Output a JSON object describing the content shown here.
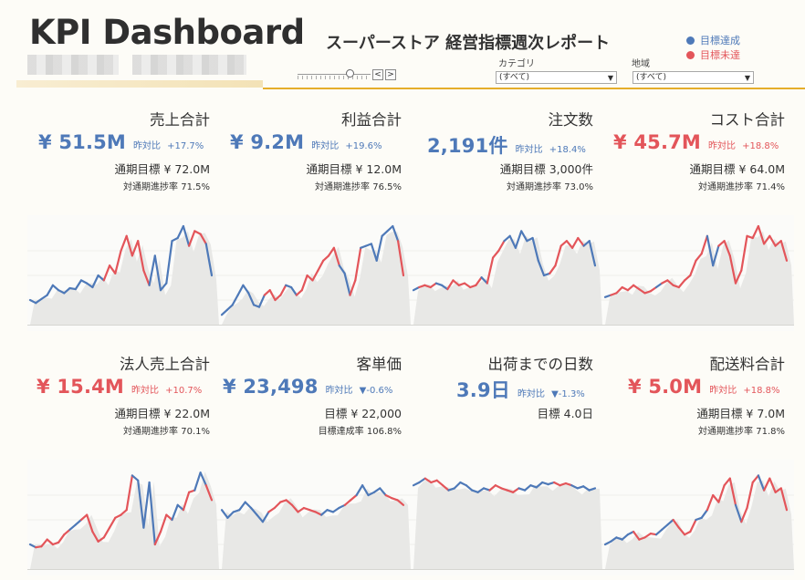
{
  "header": {
    "title": "KPI Dashboard",
    "subtitle": "スーパーストア 経営指標週次レポート"
  },
  "filters": {
    "prev_label": "<",
    "next_label": ">",
    "category": {
      "label": "カテゴリ",
      "value": "(すべて)"
    },
    "region": {
      "label": "地域",
      "value": "(すべて)"
    }
  },
  "legend": [
    {
      "label": "目標達成",
      "color": "#4e79b8"
    },
    {
      "label": "目標未達",
      "color": "#e3555a"
    }
  ],
  "colors": {
    "met": "#4e79b8",
    "unmet": "#e3555a",
    "area": "#e8e8e6",
    "accent": "#e5ad2a"
  },
  "kpis": [
    {
      "title": "売上合計",
      "value": "¥ 51.5M",
      "status": "met",
      "yoy_label": "昨対比",
      "yoy": "+17.7%",
      "target": "通期目標 ¥ 72.0M",
      "progress": "対通期進捗率 71.5%",
      "series": [
        0.25,
        0.22,
        0.26,
        0.3,
        0.4,
        0.35,
        0.32,
        0.37,
        0.36,
        0.45,
        0.42,
        0.38,
        0.5,
        0.45,
        0.6,
        0.52,
        0.75,
        0.9,
        0.7,
        0.85,
        0.55,
        0.4,
        0.7,
        0.35,
        0.42,
        0.85,
        0.88,
        1.0,
        0.8,
        0.95,
        0.92,
        0.82,
        0.5
      ],
      "red_idx": [
        13,
        14,
        15,
        16,
        17,
        18,
        19,
        20,
        28,
        29,
        30
      ]
    },
    {
      "title": "利益合計",
      "value": "¥ 9.2M",
      "status": "met",
      "yoy_label": "昨対比",
      "yoy": "+19.6%",
      "target": "通期目標 ¥ 12.0M",
      "progress": "対通期進捗率 76.5%",
      "series": [
        0.1,
        0.15,
        0.2,
        0.3,
        0.4,
        0.32,
        0.2,
        0.18,
        0.3,
        0.35,
        0.25,
        0.3,
        0.4,
        0.38,
        0.3,
        0.35,
        0.5,
        0.45,
        0.55,
        0.65,
        0.7,
        0.78,
        0.6,
        0.52,
        0.3,
        0.45,
        0.78,
        0.8,
        0.82,
        0.65,
        0.9,
        0.95,
        1.0,
        0.85,
        0.5
      ],
      "red_idx": [
        8,
        9,
        10,
        11,
        14,
        15,
        16,
        17,
        18,
        19,
        20,
        21,
        24,
        25,
        33,
        34
      ]
    },
    {
      "title": "注文数",
      "value": "2,191件",
      "status": "met",
      "yoy_label": "昨対比",
      "yoy": "+18.4%",
      "target": "通期目標 3,000件",
      "progress": "対通期進捗率 73.0%",
      "series": [
        0.35,
        0.38,
        0.4,
        0.38,
        0.42,
        0.4,
        0.36,
        0.45,
        0.4,
        0.42,
        0.38,
        0.4,
        0.48,
        0.42,
        0.68,
        0.75,
        0.85,
        0.9,
        0.78,
        0.95,
        0.85,
        0.88,
        0.65,
        0.5,
        0.52,
        0.6,
        0.8,
        0.85,
        0.78,
        0.88,
        0.8,
        0.85,
        0.6
      ],
      "red_idx": [
        1,
        2,
        3,
        6,
        7,
        8,
        9,
        10,
        11,
        13,
        14,
        15,
        24,
        25,
        26,
        27,
        28,
        29
      ]
    },
    {
      "title": "コスト合計",
      "value": "¥ 45.7M",
      "status": "unmet",
      "yoy_label": "昨対比",
      "yoy": "+18.8%",
      "target": "通期目標 ¥ 64.0M",
      "progress": "対通期進捗率 71.4%",
      "series": [
        0.28,
        0.3,
        0.32,
        0.38,
        0.35,
        0.4,
        0.36,
        0.32,
        0.34,
        0.38,
        0.42,
        0.45,
        0.4,
        0.38,
        0.45,
        0.5,
        0.65,
        0.72,
        0.9,
        0.6,
        0.8,
        0.85,
        0.7,
        0.42,
        0.55,
        0.9,
        0.88,
        1.0,
        0.82,
        0.9,
        0.8,
        0.85,
        0.65
      ],
      "red_idx": [
        1,
        2,
        3,
        4,
        5,
        6,
        7,
        8,
        10,
        11,
        12,
        13,
        14,
        15,
        16,
        17,
        20,
        21,
        22,
        23,
        24,
        25,
        26,
        27,
        28,
        29,
        30,
        31
      ]
    },
    {
      "title": "法人売上合計",
      "value": "¥ 15.4M",
      "status": "unmet",
      "yoy_label": "昨対比",
      "yoy": "+10.7%",
      "target": "通期目標 ¥ 22.0M",
      "progress": "対通期進捗率 70.1%",
      "series": [
        0.25,
        0.22,
        0.23,
        0.3,
        0.25,
        0.27,
        0.35,
        0.4,
        0.45,
        0.5,
        0.55,
        0.38,
        0.28,
        0.32,
        0.42,
        0.52,
        0.55,
        0.6,
        0.95,
        0.9,
        0.42,
        0.88,
        0.25,
        0.38,
        0.55,
        0.5,
        0.65,
        0.6,
        0.78,
        0.8,
        0.98,
        0.85,
        0.7
      ],
      "red_idx": [
        1,
        2,
        3,
        4,
        5,
        6,
        9,
        10,
        11,
        12,
        13,
        14,
        15,
        16,
        17,
        22,
        23,
        24,
        27,
        28,
        31,
        32
      ]
    },
    {
      "title": "客単価",
      "value": "¥ 23,498",
      "status": "met",
      "yoy_label": "昨対比",
      "yoy": "▼-0.6%",
      "target": "目標 ¥ 22,000",
      "progress": "目標達成率 106.8%",
      "series": [
        0.6,
        0.52,
        0.58,
        0.6,
        0.68,
        0.62,
        0.55,
        0.48,
        0.58,
        0.62,
        0.68,
        0.7,
        0.65,
        0.58,
        0.62,
        0.6,
        0.58,
        0.55,
        0.6,
        0.58,
        0.62,
        0.65,
        0.7,
        0.75,
        0.85,
        0.75,
        0.78,
        0.82,
        0.75,
        0.72,
        0.7,
        0.65
      ],
      "red_idx": [
        8,
        9,
        10,
        11,
        12,
        13,
        14,
        15,
        16,
        21,
        22,
        28,
        29,
        30,
        31
      ]
    },
    {
      "title": "出荷までの日数",
      "value": "3.9日",
      "status": "met",
      "yoy_label": "昨対比",
      "yoy": "▼-1.3%",
      "target": "目標 4.0日",
      "progress": "",
      "series": [
        0.85,
        0.88,
        0.92,
        0.88,
        0.9,
        0.85,
        0.8,
        0.82,
        0.88,
        0.85,
        0.8,
        0.78,
        0.82,
        0.8,
        0.85,
        0.82,
        0.8,
        0.78,
        0.82,
        0.8,
        0.85,
        0.83,
        0.88,
        0.86,
        0.88,
        0.85,
        0.87,
        0.85,
        0.82,
        0.84,
        0.8,
        0.82
      ],
      "red_idx": [
        2,
        3,
        4,
        5,
        13,
        14,
        15,
        16,
        17,
        24,
        25,
        26
      ]
    },
    {
      "title": "配送料合計",
      "value": "¥ 5.0M",
      "status": "unmet",
      "yoy_label": "昨対比",
      "yoy": "+18.8%",
      "target": "通期目標 ¥ 7.0M",
      "progress": "対通期進捗率 71.8%",
      "series": [
        0.25,
        0.28,
        0.32,
        0.3,
        0.35,
        0.38,
        0.3,
        0.32,
        0.36,
        0.35,
        0.4,
        0.45,
        0.5,
        0.42,
        0.35,
        0.38,
        0.5,
        0.52,
        0.6,
        0.75,
        0.68,
        0.85,
        0.92,
        0.65,
        0.48,
        0.62,
        0.88,
        0.95,
        0.8,
        0.92,
        0.78,
        0.82,
        0.6
      ],
      "red_idx": [
        5,
        6,
        7,
        8,
        12,
        13,
        14,
        15,
        18,
        19,
        20,
        21,
        22,
        24,
        25,
        26,
        28,
        29,
        30,
        31
      ]
    }
  ]
}
